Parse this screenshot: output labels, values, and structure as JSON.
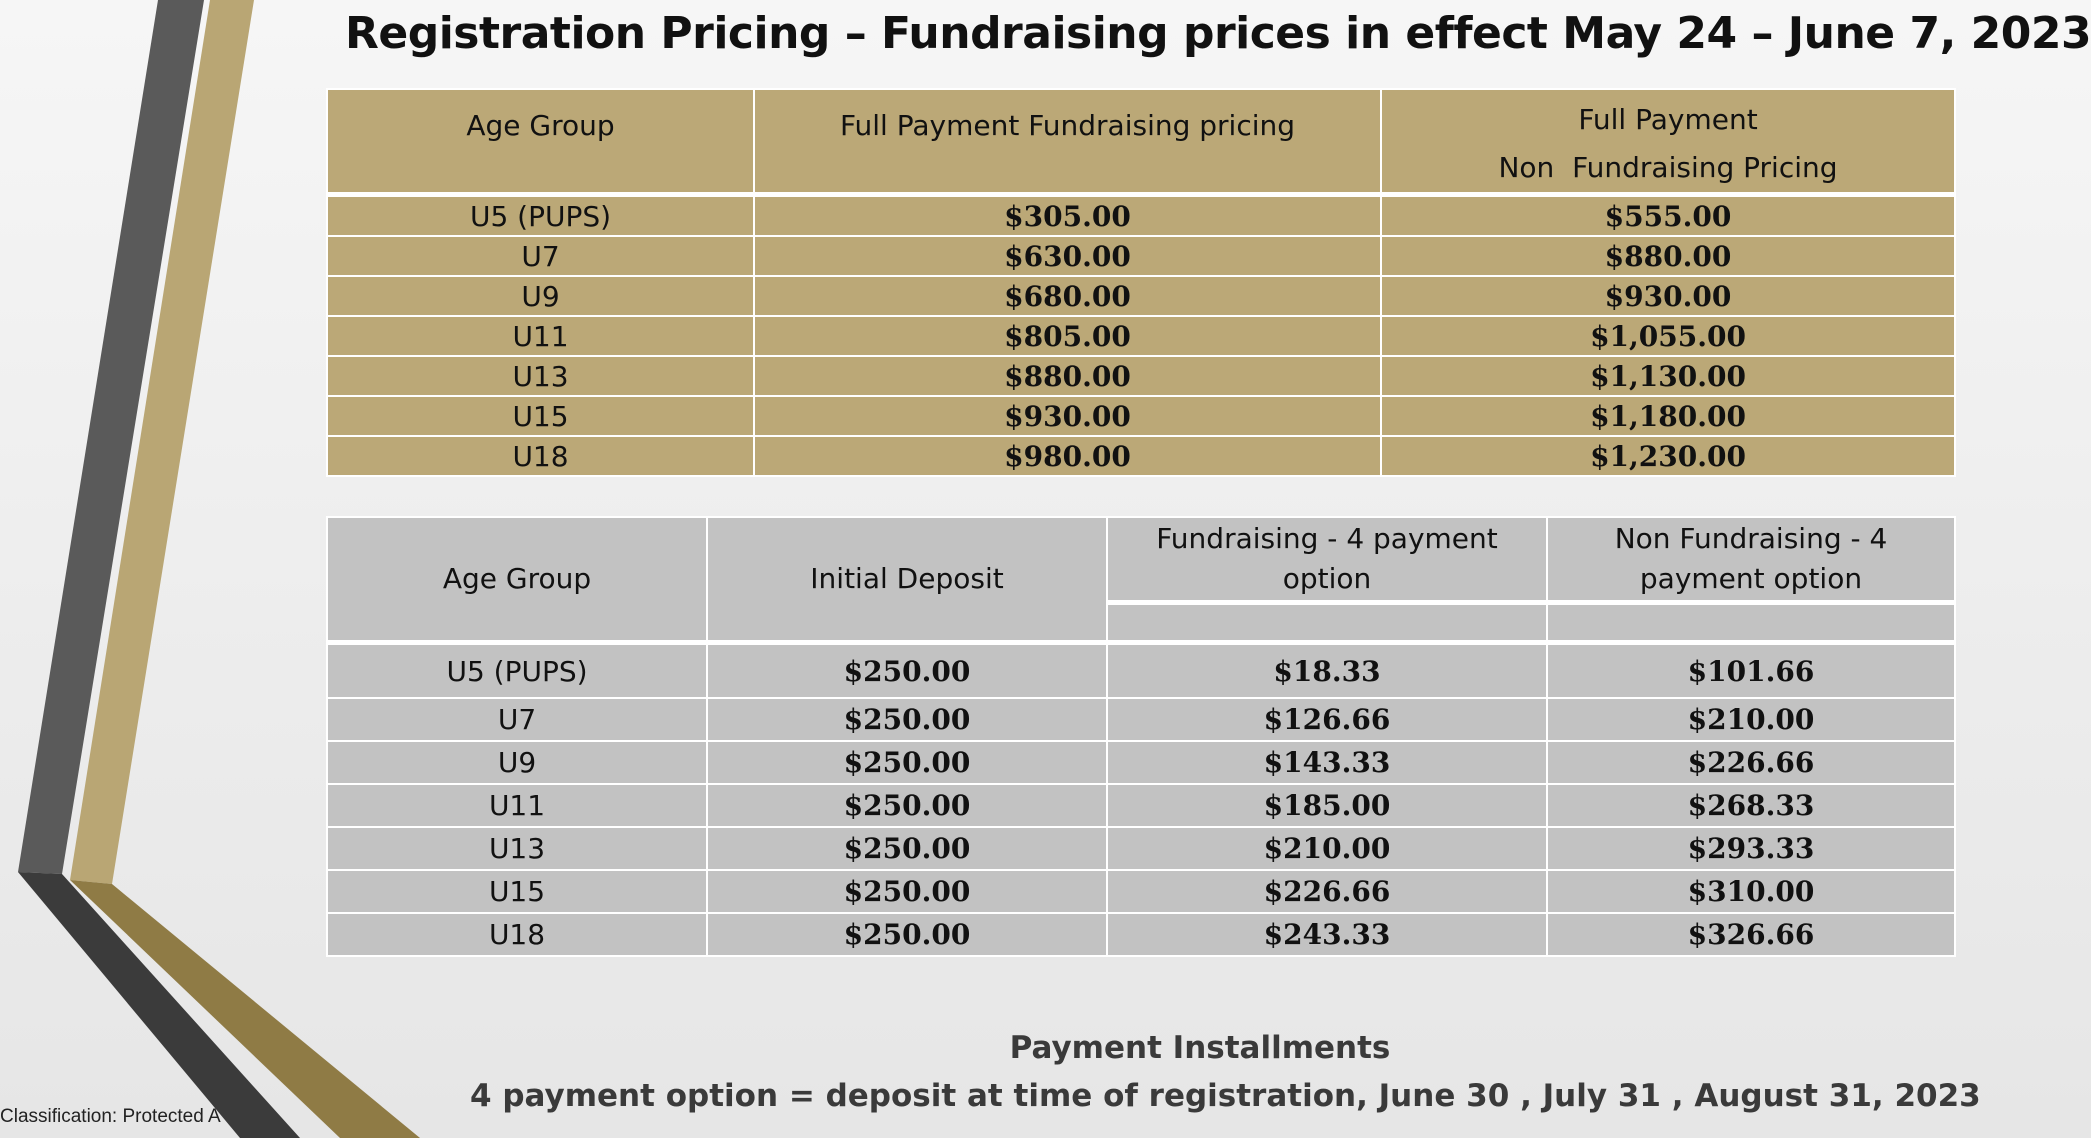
{
  "title": "Registration Pricing – Fundraising prices in effect May 24 – June 7, 2023",
  "table1": {
    "headers": [
      "Age Group",
      "Full Payment Fundraising pricing",
      "Full Payment",
      "Non  Fundraising Pricing"
    ],
    "rows": [
      [
        "U5 (PUPS)",
        "$305.00",
        "$555.00"
      ],
      [
        "U7",
        "$630.00",
        "$880.00"
      ],
      [
        "U9",
        "$680.00",
        "$930.00"
      ],
      [
        "U11",
        "$805.00",
        "$1,055.00"
      ],
      [
        "U13",
        "$880.00",
        "$1,130.00"
      ],
      [
        "U15",
        "$930.00",
        "$1,180.00"
      ],
      [
        "U18",
        "$980.00",
        "$1,230.00"
      ]
    ]
  },
  "table2": {
    "headers": [
      "Age Group",
      "Initial Deposit",
      "Fundraising - 4 payment option",
      "Non Fundraising - 4 payment option"
    ],
    "rows": [
      [
        "U5 (PUPS)",
        "$250.00",
        "$18.33",
        "$101.66"
      ],
      [
        "U7",
        "$250.00",
        "$126.66",
        "$210.00"
      ],
      [
        "U9",
        "$250.00",
        "$143.33",
        "$226.66"
      ],
      [
        "U11",
        "$250.00",
        "$185.00",
        "$268.33"
      ],
      [
        "U13",
        "$250.00",
        "$210.00",
        "$293.33"
      ],
      [
        "U15",
        "$250.00",
        "$226.66",
        "$310.00"
      ],
      [
        "U18",
        "$250.00",
        "$243.33",
        "$326.66"
      ]
    ]
  },
  "installments": {
    "title": "Payment Installments",
    "text": "4 payment option = deposit at time of registration, June 30 , July 31 , August 31, 2023"
  },
  "classification": "Classification: Protected A",
  "colors": {
    "gold": "#bba877",
    "gray": "#c2c2c2",
    "dark_stripe": "#595959",
    "gold_stripe": "#b7a572"
  }
}
